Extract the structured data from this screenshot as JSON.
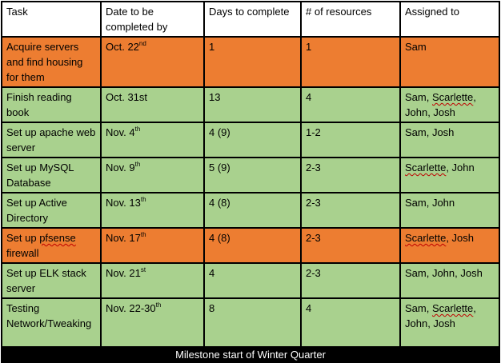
{
  "headers": [
    "Task",
    "Date to be completed by",
    "Days to complete",
    "# of resources",
    "Assigned to"
  ],
  "rows": [
    {
      "color": "#ED7D31",
      "task": "Acquire servers and find housing for them",
      "date": "Oct. 22",
      "date_sup": "nd",
      "days": "1",
      "resources": "1",
      "assigned": [
        {
          "t": "Sam"
        }
      ]
    },
    {
      "color": "#A9D18E",
      "task": "Finish reading book",
      "date": "Oct. 31st",
      "date_sup": "",
      "days": "13",
      "resources": "4",
      "assigned": [
        {
          "t": "Sam, "
        },
        {
          "t": "Scarlette",
          "sq": true
        },
        {
          "t": ", John, Josh"
        }
      ]
    },
    {
      "color": "#A9D18E",
      "task": "Set up apache web server",
      "date": "Nov. 4",
      "date_sup": "th",
      "days": "4 (9)",
      "resources": "1-2",
      "assigned": [
        {
          "t": "Sam, Josh"
        }
      ]
    },
    {
      "color": "#A9D18E",
      "task": "Set up MySQL Database",
      "date": "Nov. 9",
      "date_sup": "th",
      "days": "5 (9)",
      "resources": "2-3",
      "assigned": [
        {
          "t": "Scarlette",
          "sq": true
        },
        {
          "t": ", John"
        }
      ]
    },
    {
      "color": "#A9D18E",
      "task": "Set up Active Directory",
      "date": "Nov. 13",
      "date_sup": "th",
      "days": "4 (8)",
      "resources": "2-3",
      "assigned": [
        {
          "t": "Sam, John"
        }
      ]
    },
    {
      "color": "#ED7D31",
      "task_parts": [
        {
          "t": "Set up "
        },
        {
          "t": "pfsense",
          "sq": true
        },
        {
          "t": " firewall"
        }
      ],
      "date": "Nov. 17",
      "date_sup": "th",
      "days": "4 (8)",
      "resources": "2-3",
      "assigned": [
        {
          "t": "Scarlette",
          "sq": true
        },
        {
          "t": ", Josh"
        }
      ]
    },
    {
      "color": "#A9D18E",
      "task": "Set up ELK stack server",
      "date": "Nov. 21",
      "date_sup": "st",
      "days": "4",
      "resources": "2-3",
      "assigned": [
        {
          "t": "Sam, John, Josh"
        }
      ]
    },
    {
      "color": "#A9D18E",
      "task": "Testing Network/Tweaking",
      "date": "Nov. 22-30",
      "date_sup": "th",
      "days": "8",
      "resources": "4",
      "assigned": [
        {
          "t": "Sam, "
        },
        {
          "t": "Scarlette",
          "sq": true
        },
        {
          "t": ", John, Josh"
        }
      ]
    }
  ],
  "footer": "Milestone start of Winter Quarter"
}
